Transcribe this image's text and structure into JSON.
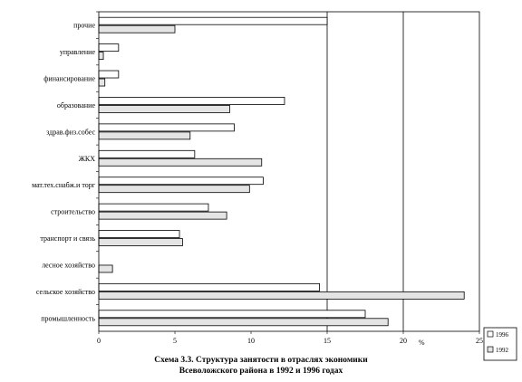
{
  "chart_data": {
    "type": "bar",
    "orientation": "horizontal",
    "title": "Схема 3.3. Структура занятости в отраслях экономики Всеволожского района в 1992 и 1996 годах",
    "xlabel": "%",
    "xlim": [
      0,
      25
    ],
    "xticks": [
      0,
      5,
      10,
      15,
      20,
      25
    ],
    "vertical_gridlines": [
      15,
      20
    ],
    "legend_position": "bottom-right",
    "categories": [
      "прочие",
      "управление",
      "финансирование",
      "образование",
      "здрав.физ.собес",
      "ЖКХ",
      "мат.тех.снабж.и торг",
      "строительство",
      "транспорт и связь",
      "лесное хозяйство",
      "сельское хозяйство",
      "промышленность"
    ],
    "series": [
      {
        "name": "1996",
        "color": "#ffffff",
        "values": [
          15.0,
          1.3,
          1.3,
          12.2,
          8.9,
          6.3,
          10.8,
          7.2,
          5.3,
          0,
          14.5,
          17.5
        ]
      },
      {
        "name": "1992",
        "color": "#e4e4e4",
        "values": [
          5.0,
          0.3,
          0.4,
          8.6,
          6.0,
          10.7,
          9.9,
          8.4,
          5.5,
          0.9,
          24.0,
          19.0
        ]
      }
    ]
  },
  "caption": {
    "line1": "Схема 3.3. Структура занятости в отраслях экономики",
    "line2": "Всеволожского района в 1992 и 1996 годах"
  }
}
